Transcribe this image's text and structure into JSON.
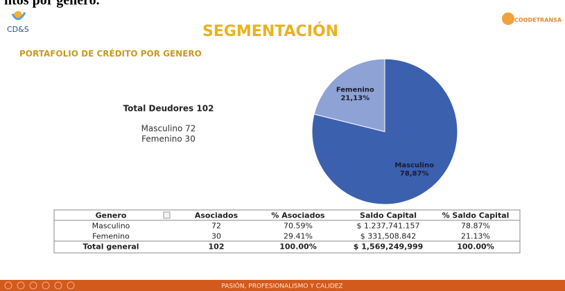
{
  "header_text": "ntos por genero.",
  "logo_left": "CD&S",
  "logo_right": "COODETRANSA",
  "title": "SEGMENTACIÓN",
  "subtitle": "PORTAFOLIO DE CRÉDITO POR GENERO",
  "summary": {
    "total": "Total Deudores 102",
    "lines": [
      "Masculino 72",
      "Femenino 30"
    ]
  },
  "chart_data": {
    "type": "pie",
    "categories": [
      "Masculino",
      "Femenino"
    ],
    "values": [
      78.87,
      21.13
    ],
    "value_labels": [
      "78,87%",
      "21,13%"
    ],
    "colors": [
      "#3b60ae",
      "#8fa2d5"
    ]
  },
  "table": {
    "header": [
      "Genero",
      "Asociados",
      "% Asociados",
      "Saldo Capital",
      "% Saldo Capital"
    ],
    "rows": [
      [
        "Masculino",
        "72",
        "70.59%",
        "$ 1.237,741.157",
        "78.87%"
      ],
      [
        "Femenino",
        "30",
        "29.41%",
        "$ 331,508.842",
        "21.13%"
      ],
      [
        "Total general",
        "102",
        "100.00%",
        "$ 1,569,249,999",
        "100.00%"
      ]
    ]
  },
  "footer": "PASIÓN, PROFESIONALISMO Y CALIDEZ"
}
